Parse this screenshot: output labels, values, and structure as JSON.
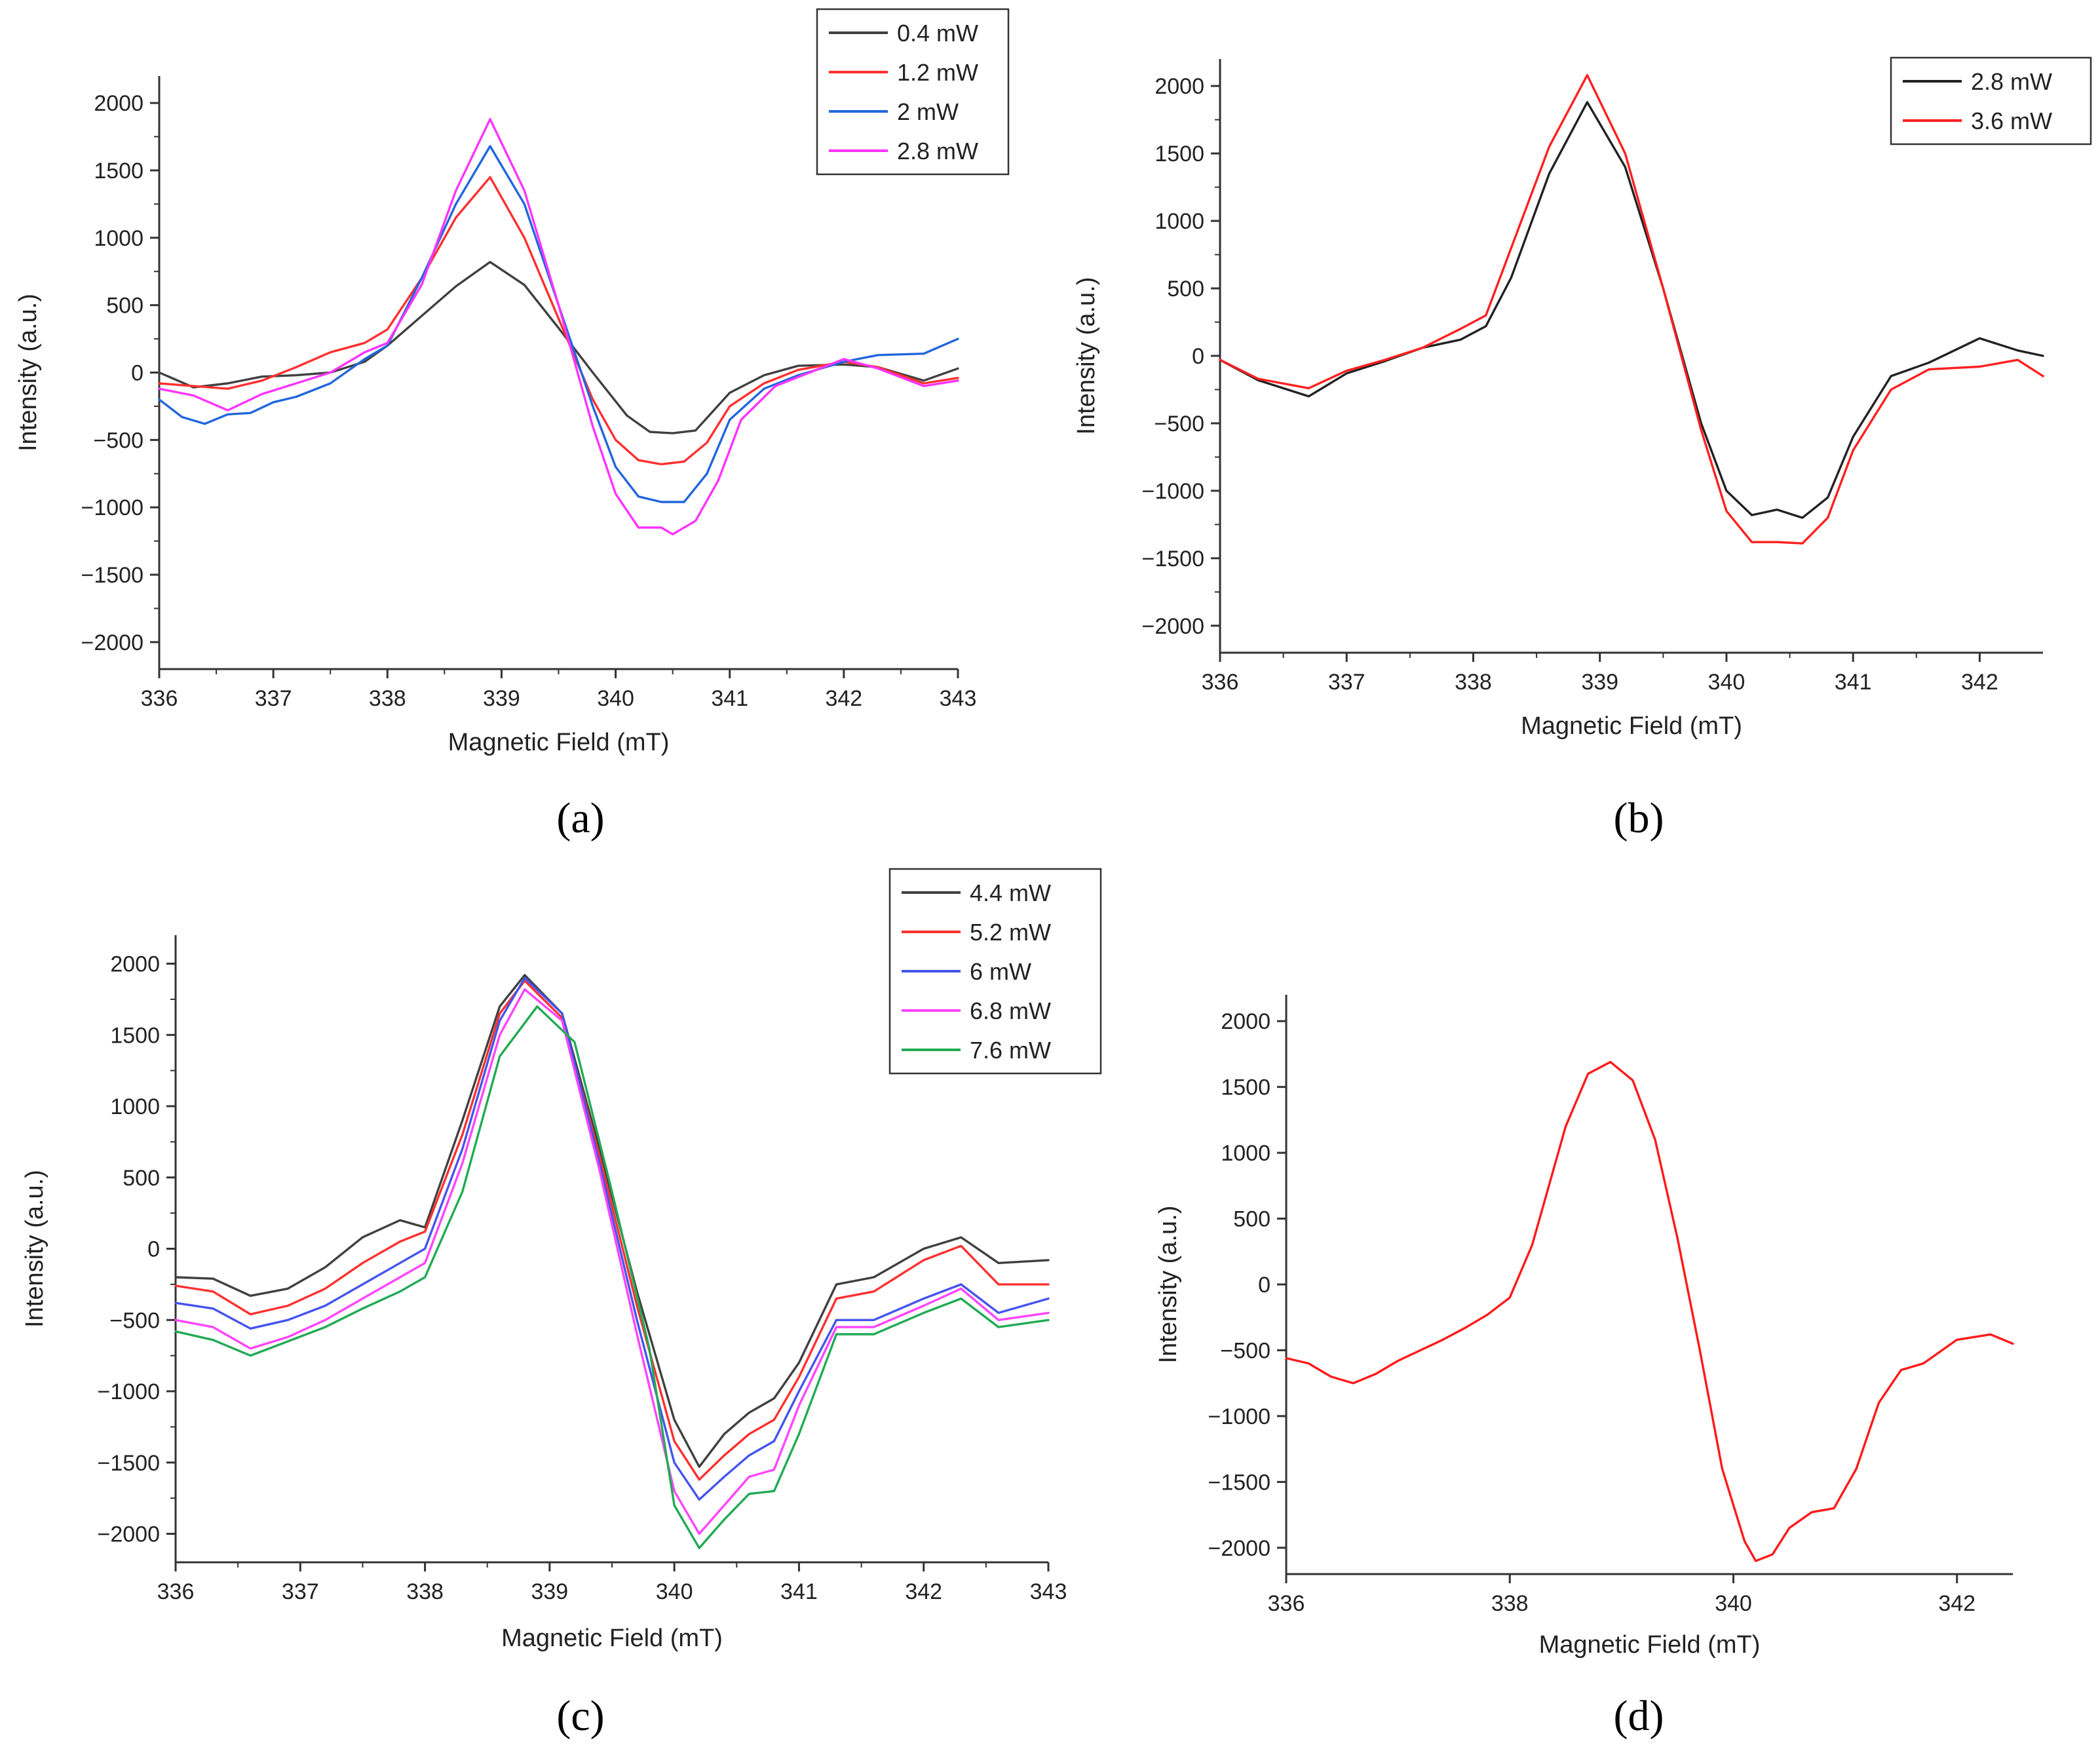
{
  "chart_data": [
    {
      "type": "line",
      "panel_label": "(a)",
      "xlabel": "Magnetic Field (mT)",
      "ylabel": "Intensity (a.u.)",
      "xlim": [
        336,
        343
      ],
      "ylim": [
        -2200,
        2200
      ],
      "x_ticks": [
        336,
        337,
        338,
        339,
        340,
        341,
        342,
        343
      ],
      "y_ticks": [
        -2000,
        -1500,
        -1000,
        -500,
        0,
        500,
        1000,
        1500,
        2000
      ],
      "legend_position": "top-right",
      "series": [
        {
          "name": "0.4 mW",
          "color": "#404040",
          "x": [
            336,
            336.3,
            336.6,
            336.9,
            337.2,
            337.5,
            337.8,
            338.0,
            338.3,
            338.6,
            338.9,
            339.2,
            339.5,
            339.8,
            340.1,
            340.3,
            340.5,
            340.7,
            341.0,
            341.3,
            341.6,
            342.0,
            342.3,
            342.7,
            343.0
          ],
          "y": [
            0,
            -110,
            -80,
            -30,
            -20,
            0,
            80,
            200,
            420,
            640,
            820,
            650,
            330,
            0,
            -320,
            -440,
            -450,
            -430,
            -150,
            -20,
            50,
            60,
            40,
            -60,
            30
          ]
        },
        {
          "name": "1.2 mW",
          "color": "#ff3030",
          "x": [
            336,
            336.3,
            336.6,
            336.9,
            337.2,
            337.5,
            337.8,
            338.0,
            338.3,
            338.6,
            338.9,
            339.2,
            339.5,
            339.8,
            340.0,
            340.2,
            340.4,
            340.6,
            340.8,
            341.0,
            341.3,
            341.6,
            342.0,
            342.3,
            342.7,
            343.0
          ],
          "y": [
            -80,
            -100,
            -120,
            -60,
            40,
            150,
            220,
            320,
            700,
            1150,
            1450,
            1000,
            400,
            -200,
            -500,
            -650,
            -680,
            -660,
            -520,
            -250,
            -80,
            20,
            80,
            40,
            -80,
            -40
          ]
        },
        {
          "name": "2 mW",
          "color": "#2266dd",
          "x": [
            336,
            336.2,
            336.4,
            336.6,
            336.8,
            337.0,
            337.2,
            337.5,
            337.8,
            338.0,
            338.3,
            338.6,
            338.9,
            339.2,
            339.5,
            339.8,
            340.0,
            340.2,
            340.4,
            340.6,
            340.8,
            341.0,
            341.3,
            341.6,
            342.0,
            342.3,
            342.7,
            343.0
          ],
          "y": [
            -200,
            -330,
            -380,
            -310,
            -300,
            -220,
            -180,
            -80,
            100,
            200,
            700,
            1250,
            1680,
            1250,
            500,
            -250,
            -700,
            -920,
            -960,
            -960,
            -750,
            -350,
            -120,
            -20,
            80,
            130,
            140,
            250
          ]
        },
        {
          "name": "2.8 mW",
          "color": "#ff33ff",
          "x": [
            336,
            336.3,
            336.6,
            336.9,
            337.2,
            337.5,
            337.8,
            338.0,
            338.3,
            338.6,
            338.9,
            339.2,
            339.5,
            339.8,
            340.0,
            340.2,
            340.4,
            340.5,
            340.7,
            340.9,
            341.1,
            341.4,
            341.7,
            342.0,
            342.3,
            342.7,
            343.0
          ],
          "y": [
            -120,
            -170,
            -280,
            -160,
            -80,
            0,
            150,
            220,
            650,
            1350,
            1880,
            1350,
            500,
            -400,
            -900,
            -1150,
            -1150,
            -1200,
            -1100,
            -800,
            -350,
            -100,
            0,
            100,
            30,
            -100,
            -60
          ]
        }
      ]
    },
    {
      "type": "line",
      "panel_label": "(b)",
      "xlabel": "Magnetic Field (mT)",
      "ylabel": "Intensity (a.u.)",
      "xlim": [
        336,
        342.5
      ],
      "ylim": [
        -2200,
        2200
      ],
      "x_ticks": [
        336,
        337,
        338,
        339,
        340,
        341,
        342
      ],
      "y_ticks": [
        -2000,
        -1500,
        -1000,
        -500,
        0,
        500,
        1000,
        1500,
        2000
      ],
      "legend_position": "top-right",
      "series": [
        {
          "name": "2.8 mW",
          "color": "#222222",
          "x": [
            336,
            336.3,
            336.7,
            337.0,
            337.3,
            337.6,
            337.9,
            338.1,
            338.3,
            338.6,
            338.9,
            339.2,
            339.5,
            339.8,
            340.0,
            340.2,
            340.4,
            340.6,
            340.8,
            341.0,
            341.3,
            341.6,
            342.0,
            342.3,
            342.5
          ],
          "y": [
            -30,
            -180,
            -300,
            -130,
            -40,
            60,
            120,
            220,
            580,
            1350,
            1880,
            1400,
            500,
            -500,
            -1000,
            -1180,
            -1140,
            -1200,
            -1050,
            -600,
            -150,
            -50,
            130,
            40,
            0
          ]
        },
        {
          "name": "3.6 mW",
          "color": "#ff2020",
          "x": [
            336,
            336.3,
            336.7,
            337.0,
            337.3,
            337.6,
            337.9,
            338.1,
            338.3,
            338.6,
            338.9,
            339.2,
            339.5,
            339.8,
            340.0,
            340.2,
            340.4,
            340.6,
            340.8,
            341.0,
            341.3,
            341.6,
            342.0,
            342.3,
            342.5
          ],
          "y": [
            -30,
            -170,
            -240,
            -110,
            -30,
            60,
            200,
            300,
            800,
            1550,
            2080,
            1500,
            500,
            -550,
            -1150,
            -1380,
            -1380,
            -1390,
            -1200,
            -700,
            -250,
            -100,
            -80,
            -30,
            -150
          ]
        }
      ]
    },
    {
      "type": "line",
      "panel_label": "(c)",
      "xlabel": "Magnetic Field (mT)",
      "ylabel": "Intensity (a.u.)",
      "xlim": [
        336,
        343
      ],
      "ylim": [
        -2200,
        2200
      ],
      "x_ticks": [
        336,
        337,
        338,
        339,
        340,
        341,
        342,
        343
      ],
      "y_ticks": [
        -2000,
        -1500,
        -1000,
        -500,
        0,
        500,
        1000,
        1500,
        2000
      ],
      "legend_position": "top-right",
      "series": [
        {
          "name": "4.4 mW",
          "color": "#404040",
          "x": [
            336,
            336.3,
            336.6,
            336.9,
            337.2,
            337.5,
            337.8,
            338.0,
            338.3,
            338.6,
            338.8,
            339.1,
            339.4,
            339.7,
            340.0,
            340.2,
            340.4,
            340.6,
            340.8,
            341.0,
            341.3,
            341.6,
            342.0,
            342.3,
            342.6,
            343.0
          ],
          "y": [
            -200,
            -210,
            -330,
            -280,
            -130,
            80,
            200,
            150,
            900,
            1700,
            1920,
            1650,
            700,
            -300,
            -1200,
            -1530,
            -1300,
            -1150,
            -1050,
            -800,
            -250,
            -200,
            0,
            80,
            -100,
            -80
          ]
        },
        {
          "name": "5.2 mW",
          "color": "#ff3030",
          "x": [
            336,
            336.3,
            336.6,
            336.9,
            337.2,
            337.5,
            337.8,
            338.0,
            338.3,
            338.6,
            338.8,
            339.1,
            339.4,
            339.7,
            340.0,
            340.2,
            340.4,
            340.6,
            340.8,
            341.0,
            341.3,
            341.6,
            342.0,
            342.3,
            342.6,
            343.0
          ],
          "y": [
            -260,
            -300,
            -460,
            -400,
            -280,
            -100,
            50,
            120,
            800,
            1650,
            1880,
            1620,
            650,
            -400,
            -1350,
            -1620,
            -1450,
            -1300,
            -1200,
            -900,
            -350,
            -300,
            -80,
            20,
            -250,
            -250
          ]
        },
        {
          "name": "6 mW",
          "color": "#4455ee",
          "x": [
            336,
            336.3,
            336.6,
            336.9,
            337.2,
            337.5,
            337.8,
            338.0,
            338.3,
            338.6,
            338.8,
            339.1,
            339.4,
            339.7,
            340.0,
            340.2,
            340.4,
            340.6,
            340.8,
            341.0,
            341.3,
            341.6,
            342.0,
            342.3,
            342.6,
            343.0
          ],
          "y": [
            -380,
            -420,
            -560,
            -500,
            -400,
            -250,
            -100,
            0,
            700,
            1600,
            1900,
            1650,
            600,
            -500,
            -1500,
            -1760,
            -1600,
            -1450,
            -1350,
            -1000,
            -500,
            -500,
            -350,
            -250,
            -450,
            -350
          ]
        },
        {
          "name": "6.8 mW",
          "color": "#ff44ff",
          "x": [
            336,
            336.3,
            336.6,
            336.9,
            337.2,
            337.5,
            337.8,
            338.0,
            338.3,
            338.6,
            338.8,
            339.1,
            339.4,
            339.7,
            340.0,
            340.2,
            340.4,
            340.6,
            340.8,
            341.0,
            341.3,
            341.6,
            342.0,
            342.3,
            342.6,
            343.0
          ],
          "y": [
            -500,
            -550,
            -700,
            -620,
            -500,
            -350,
            -200,
            -100,
            600,
            1500,
            1820,
            1600,
            550,
            -600,
            -1700,
            -2000,
            -1800,
            -1600,
            -1550,
            -1100,
            -550,
            -550,
            -400,
            -280,
            -500,
            -450
          ]
        },
        {
          "name": "7.6 mW",
          "color": "#22aa55",
          "x": [
            336,
            336.3,
            336.6,
            336.9,
            337.2,
            337.5,
            337.8,
            338.0,
            338.3,
            338.6,
            338.9,
            339.2,
            339.5,
            339.8,
            340.0,
            340.2,
            340.4,
            340.6,
            340.8,
            341.0,
            341.3,
            341.6,
            342.0,
            342.3,
            342.6,
            343.0
          ],
          "y": [
            -580,
            -640,
            -750,
            -650,
            -550,
            -420,
            -300,
            -200,
            400,
            1350,
            1700,
            1450,
            400,
            -700,
            -1800,
            -2100,
            -1900,
            -1720,
            -1700,
            -1300,
            -600,
            -600,
            -450,
            -350,
            -550,
            -500
          ]
        }
      ]
    },
    {
      "type": "line",
      "panel_label": "(d)",
      "xlabel": "Magnetic Field (mT)",
      "ylabel": "Intensity (a.u.)",
      "xlim": [
        336,
        342.5
      ],
      "ylim": [
        -2200,
        2200
      ],
      "x_ticks": [
        336,
        338,
        340,
        342
      ],
      "y_ticks": [
        -2000,
        -1500,
        -1000,
        -500,
        0,
        500,
        1000,
        1500,
        2000
      ],
      "legend_position": "none",
      "series": [
        {
          "name": "",
          "color": "#ff1a1a",
          "x": [
            336,
            336.2,
            336.4,
            336.6,
            336.8,
            337.0,
            337.2,
            337.4,
            337.6,
            337.8,
            338.0,
            338.2,
            338.5,
            338.7,
            338.9,
            339.1,
            339.3,
            339.5,
            339.7,
            339.9,
            340.1,
            340.2,
            340.35,
            340.5,
            340.7,
            340.9,
            341.1,
            341.3,
            341.5,
            341.7,
            342.0,
            342.3,
            342.5
          ],
          "y": [
            -560,
            -600,
            -700,
            -750,
            -680,
            -580,
            -500,
            -420,
            -330,
            -230,
            -100,
            300,
            1200,
            1600,
            1690,
            1550,
            1100,
            350,
            -500,
            -1400,
            -1950,
            -2100,
            -2050,
            -1850,
            -1730,
            -1700,
            -1400,
            -900,
            -650,
            -600,
            -420,
            -380,
            -450
          ]
        }
      ]
    }
  ]
}
